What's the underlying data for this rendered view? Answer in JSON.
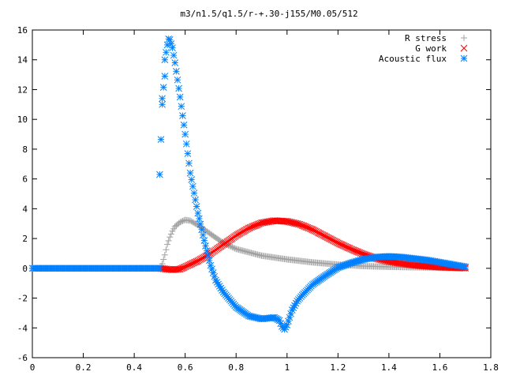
{
  "chart_data": {
    "type": "scatter",
    "title": "m3/n1.5/q1.5/r-+.30-j155/M0.05/512",
    "xlabel": "",
    "ylabel": "",
    "xlim": [
      0,
      1.8
    ],
    "ylim": [
      -6,
      16
    ],
    "x_ticks": [
      "0",
      "0.2",
      "0.4",
      "0.6",
      "0.8",
      "1",
      "1.2",
      "1.4",
      "1.6",
      "1.8"
    ],
    "y_ticks": [
      "-6",
      "-4",
      "-2",
      "0",
      "2",
      "4",
      "6",
      "8",
      "10",
      "12",
      "14",
      "16"
    ],
    "grid": false,
    "legend_position": "top-right",
    "series": [
      {
        "name": "R stress",
        "marker": "plus",
        "color": "#a0a0a0",
        "points": [
          [
            0.0,
            0
          ],
          [
            0.1,
            0
          ],
          [
            0.2,
            0
          ],
          [
            0.3,
            0
          ],
          [
            0.4,
            0
          ],
          [
            0.5,
            0
          ],
          [
            0.51,
            0.3
          ],
          [
            0.52,
            0.9
          ],
          [
            0.53,
            1.6
          ],
          [
            0.54,
            2.1
          ],
          [
            0.55,
            2.5
          ],
          [
            0.56,
            2.8
          ],
          [
            0.58,
            3.1
          ],
          [
            0.6,
            3.25
          ],
          [
            0.62,
            3.2
          ],
          [
            0.65,
            2.9
          ],
          [
            0.7,
            2.3
          ],
          [
            0.75,
            1.7
          ],
          [
            0.8,
            1.3
          ],
          [
            0.9,
            0.85
          ],
          [
            1.0,
            0.6
          ],
          [
            1.1,
            0.4
          ],
          [
            1.2,
            0.25
          ],
          [
            1.3,
            0.15
          ],
          [
            1.4,
            0.1
          ],
          [
            1.5,
            0.07
          ],
          [
            1.6,
            0.04
          ],
          [
            1.7,
            0.02
          ]
        ]
      },
      {
        "name": "G work",
        "marker": "cross",
        "color": "#ff0000",
        "points": [
          [
            0.5,
            0
          ],
          [
            0.55,
            -0.1
          ],
          [
            0.58,
            -0.05
          ],
          [
            0.6,
            0.1
          ],
          [
            0.65,
            0.5
          ],
          [
            0.7,
            1.0
          ],
          [
            0.75,
            1.6
          ],
          [
            0.8,
            2.2
          ],
          [
            0.85,
            2.7
          ],
          [
            0.9,
            3.05
          ],
          [
            0.95,
            3.2
          ],
          [
            1.0,
            3.15
          ],
          [
            1.05,
            2.95
          ],
          [
            1.1,
            2.6
          ],
          [
            1.15,
            2.15
          ],
          [
            1.2,
            1.7
          ],
          [
            1.25,
            1.3
          ],
          [
            1.3,
            0.95
          ],
          [
            1.35,
            0.65
          ],
          [
            1.4,
            0.45
          ],
          [
            1.5,
            0.2
          ],
          [
            1.6,
            0.08
          ],
          [
            1.7,
            0.02
          ]
        ]
      },
      {
        "name": "Acoustic flux",
        "marker": "star",
        "color": "#0080ff",
        "points": [
          [
            0.0,
            0
          ],
          [
            0.1,
            0
          ],
          [
            0.2,
            0
          ],
          [
            0.3,
            0
          ],
          [
            0.4,
            0
          ],
          [
            0.5,
            0
          ],
          [
            0.5,
            6.3
          ],
          [
            0.51,
            11.0
          ],
          [
            0.51,
            11.4
          ],
          [
            0.52,
            12.9
          ],
          [
            0.52,
            14.0
          ],
          [
            0.53,
            15.0
          ],
          [
            0.535,
            15.4
          ],
          [
            0.54,
            15.35
          ],
          [
            0.55,
            14.8
          ],
          [
            0.56,
            13.8
          ],
          [
            0.58,
            11.5
          ],
          [
            0.6,
            9.0
          ],
          [
            0.62,
            6.4
          ],
          [
            0.65,
            3.7
          ],
          [
            0.68,
            1.5
          ],
          [
            0.7,
            0.2
          ],
          [
            0.72,
            -0.8
          ],
          [
            0.75,
            -1.6
          ],
          [
            0.8,
            -2.6
          ],
          [
            0.85,
            -3.2
          ],
          [
            0.9,
            -3.4
          ],
          [
            0.95,
            -3.3
          ],
          [
            0.97,
            -3.5
          ],
          [
            0.98,
            -3.9
          ],
          [
            0.99,
            -4.1
          ],
          [
            1.0,
            -3.8
          ],
          [
            1.02,
            -2.8
          ],
          [
            1.04,
            -2.2
          ],
          [
            1.06,
            -1.8
          ],
          [
            1.1,
            -1.1
          ],
          [
            1.15,
            -0.5
          ],
          [
            1.2,
            0.05
          ],
          [
            1.25,
            0.35
          ],
          [
            1.3,
            0.6
          ],
          [
            1.35,
            0.75
          ],
          [
            1.4,
            0.8
          ],
          [
            1.45,
            0.75
          ],
          [
            1.5,
            0.65
          ],
          [
            1.55,
            0.55
          ],
          [
            1.6,
            0.4
          ],
          [
            1.65,
            0.25
          ],
          [
            1.7,
            0.1
          ]
        ]
      }
    ]
  }
}
